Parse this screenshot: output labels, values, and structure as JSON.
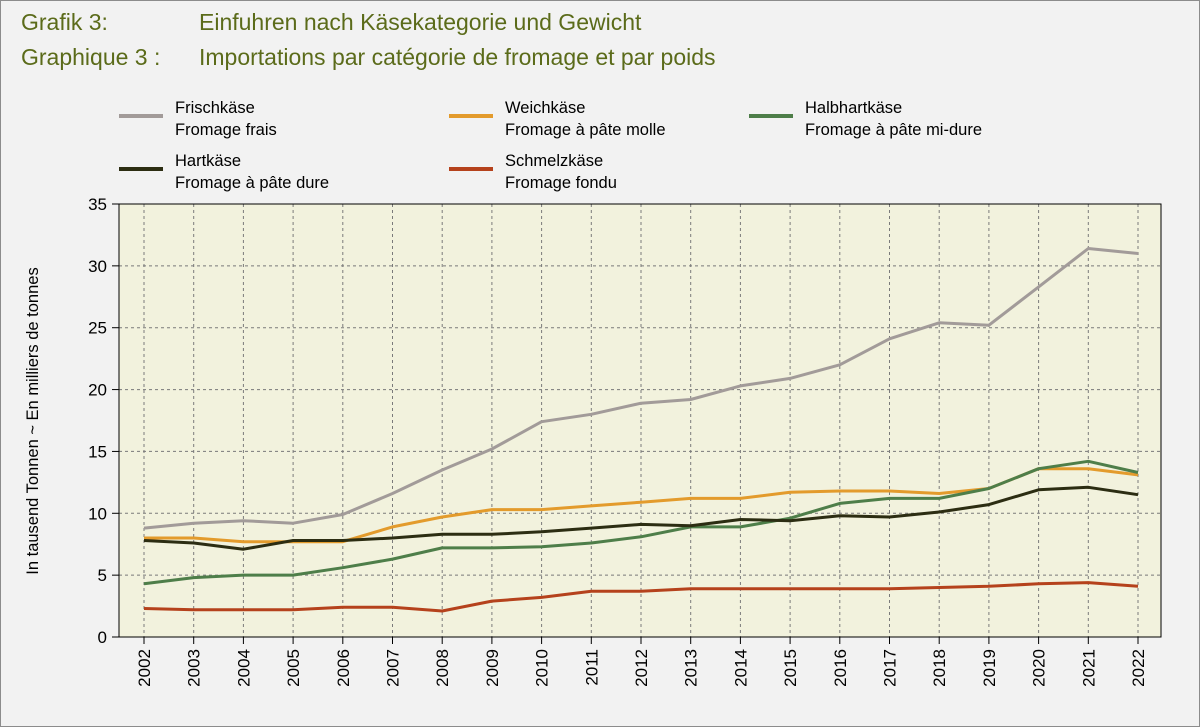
{
  "titles": [
    {
      "label": "Grafik 3:",
      "text": "Einfuhren nach Käsekategorie und Gewicht"
    },
    {
      "label": "Graphique 3 :",
      "text": "Importations par catégorie de fromage et par poids"
    }
  ],
  "colors": {
    "plot_background": "#f2f2dd",
    "frischkaese": "#a29b99",
    "weichkaese": "#e39b2c",
    "halbhartkaese": "#4e7e49",
    "hartkaese": "#2c2d12",
    "schmelzkaese": "#b5421c",
    "title": "#5b6b1a"
  },
  "chart_data": {
    "type": "line",
    "ylabel": "In tausend Tonnen  ~  En milliers de tonnes",
    "xlabel": "",
    "ylim": [
      0,
      35
    ],
    "yticks": [
      0,
      5,
      10,
      15,
      20,
      25,
      30,
      35
    ],
    "grid": true,
    "legend_position": "top",
    "x": [
      "2002",
      "2003",
      "2004",
      "2005",
      "2006",
      "2007",
      "2008",
      "2009",
      "2010",
      "2011",
      "2012",
      "2013",
      "2014",
      "2015",
      "2016",
      "2017",
      "2018",
      "2019",
      "2020",
      "2021",
      "2022"
    ],
    "series": [
      {
        "name": "Frischkäse",
        "name_fr": "Fromage frais",
        "color_key": "frischkaese",
        "values": [
          8.8,
          9.2,
          9.4,
          9.2,
          9.9,
          11.6,
          13.5,
          15.2,
          17.4,
          18.0,
          18.9,
          19.2,
          20.3,
          20.9,
          22.0,
          24.1,
          25.4,
          25.2,
          28.3,
          31.4,
          31.0
        ]
      },
      {
        "name": "Weichkäse",
        "name_fr": "Fromage à pâte molle",
        "color_key": "weichkaese",
        "values": [
          8.0,
          8.0,
          7.7,
          7.7,
          7.7,
          8.9,
          9.7,
          10.3,
          10.3,
          10.6,
          10.9,
          11.2,
          11.2,
          11.7,
          11.8,
          11.8,
          11.6,
          12.0,
          13.6,
          13.6,
          13.1
        ]
      },
      {
        "name": "Halbhartkäse",
        "name_fr": "Fromage à pâte mi-dure",
        "color_key": "halbhartkaese",
        "values": [
          4.3,
          4.8,
          5.0,
          5.0,
          5.6,
          6.3,
          7.2,
          7.2,
          7.3,
          7.6,
          8.1,
          8.9,
          8.9,
          9.6,
          10.8,
          11.2,
          11.2,
          12.0,
          13.6,
          14.2,
          13.3
        ]
      },
      {
        "name": "Hartkäse",
        "name_fr": "Fromage à pâte dure",
        "color_key": "hartkaese",
        "values": [
          7.8,
          7.6,
          7.1,
          7.8,
          7.8,
          8.0,
          8.3,
          8.3,
          8.5,
          8.8,
          9.1,
          9.0,
          9.5,
          9.4,
          9.8,
          9.7,
          10.1,
          10.7,
          11.9,
          12.1,
          11.5
        ]
      },
      {
        "name": "Schmelzkäse",
        "name_fr": "Fromage fondu",
        "color_key": "schmelzkaese",
        "values": [
          2.3,
          2.2,
          2.2,
          2.2,
          2.4,
          2.4,
          2.1,
          2.9,
          3.2,
          3.7,
          3.7,
          3.9,
          3.9,
          3.9,
          3.9,
          3.9,
          4.0,
          4.1,
          4.3,
          4.4,
          4.1
        ]
      }
    ]
  }
}
